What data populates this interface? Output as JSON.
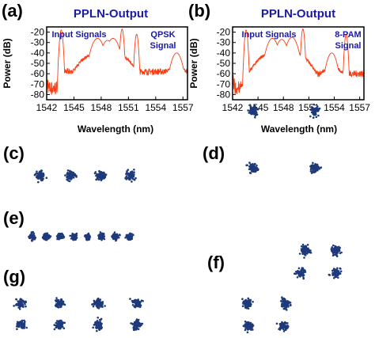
{
  "panel_labels": {
    "a": "(a)",
    "b": "(b)",
    "c": "(c)",
    "d": "(d)",
    "e": "(e)",
    "f": "(f)",
    "g": "(g)"
  },
  "colors": {
    "trace": "#ff3b10",
    "title": "#1a1aa8",
    "constellation": "#1f3a7a"
  },
  "chart_data": [
    {
      "id": "spectrum-a",
      "type": "line",
      "title": "PPLN-Output",
      "xlabel": "Wavelength (nm)",
      "ylabel": "Power (dB)",
      "xlim": [
        1542,
        1557.5
      ],
      "ylim": [
        -85,
        -15
      ],
      "xticks": [
        1542,
        1545,
        1548,
        1551,
        1554,
        1557
      ],
      "yticks": [
        -20,
        -30,
        -40,
        -50,
        -60,
        -70,
        -80
      ],
      "annotations": [
        "Input Signals",
        "QPSK",
        "Signal"
      ],
      "noise_floor_db": -58,
      "peaks": [
        {
          "x": 1543.6,
          "y": -18,
          "w": 0.09
        },
        {
          "x": 1547.6,
          "y": -26,
          "w": 0.35
        },
        {
          "x": 1548.7,
          "y": -28,
          "w": 0.35
        },
        {
          "x": 1549.3,
          "y": -26,
          "w": 0.35
        },
        {
          "x": 1550.3,
          "y": -17,
          "w": 0.09
        },
        {
          "x": 1551.9,
          "y": -22,
          "w": 0.09
        },
        {
          "x": 1556.3,
          "y": -40,
          "w": 0.3
        }
      ]
    },
    {
      "id": "spectrum-b",
      "type": "line",
      "title": "PPLN-Output",
      "xlabel": "Wavelength (nm)",
      "ylabel": "Power (dB)",
      "xlim": [
        1542,
        1557.5
      ],
      "ylim": [
        -85,
        -15
      ],
      "xticks": [
        1542,
        1545,
        1548,
        1551,
        1554,
        1557
      ],
      "yticks": [
        -20,
        -30,
        -40,
        -50,
        -60,
        -70,
        -80
      ],
      "annotations": [
        "Input Signals",
        "8-PAM",
        "Signal"
      ],
      "noise_floor_db": -60,
      "peaks": [
        {
          "x": 1543.6,
          "y": -18,
          "w": 0.09
        },
        {
          "x": 1546.7,
          "y": -26,
          "w": 0.35
        },
        {
          "x": 1547.8,
          "y": -27,
          "w": 0.35
        },
        {
          "x": 1549.0,
          "y": -25,
          "w": 0.35
        },
        {
          "x": 1550.3,
          "y": -17,
          "w": 0.09
        },
        {
          "x": 1553.7,
          "y": -40,
          "w": 0.3
        },
        {
          "x": 1555.4,
          "y": -22,
          "w": 0.09
        }
      ]
    },
    {
      "id": "constellation-c",
      "type": "scatter",
      "format": "4-level (single row)",
      "clusters": [
        [
          0,
          0
        ],
        [
          1,
          0
        ],
        [
          2,
          0
        ],
        [
          3,
          0
        ]
      ]
    },
    {
      "id": "constellation-d",
      "type": "scatter",
      "format": "QPSK",
      "clusters": [
        [
          0,
          1
        ],
        [
          1,
          1
        ],
        [
          0,
          0
        ],
        [
          1,
          0
        ]
      ]
    },
    {
      "id": "constellation-e",
      "type": "scatter",
      "format": "8-level (single row)",
      "clusters": [
        [
          0,
          0
        ],
        [
          1,
          0
        ],
        [
          2,
          0
        ],
        [
          3,
          0
        ],
        [
          4,
          0
        ],
        [
          5,
          0
        ],
        [
          6,
          0
        ],
        [
          7,
          0
        ]
      ]
    },
    {
      "id": "constellation-f",
      "type": "scatter",
      "format": "8-point",
      "clusters": [
        [
          1.3,
          2
        ],
        [
          2,
          2
        ],
        [
          1.2,
          1.4
        ],
        [
          2,
          1.4
        ],
        [
          0,
          0.6
        ],
        [
          0.85,
          0.6
        ],
        [
          0,
          0
        ],
        [
          0.8,
          0
        ]
      ]
    },
    {
      "id": "constellation-g",
      "type": "scatter",
      "format": "8-point (2x4)",
      "clusters": [
        [
          0,
          1
        ],
        [
          1,
          1
        ],
        [
          2,
          1
        ],
        [
          3,
          1
        ],
        [
          0,
          0
        ],
        [
          1,
          0
        ],
        [
          2,
          0
        ],
        [
          3,
          0
        ]
      ]
    }
  ]
}
